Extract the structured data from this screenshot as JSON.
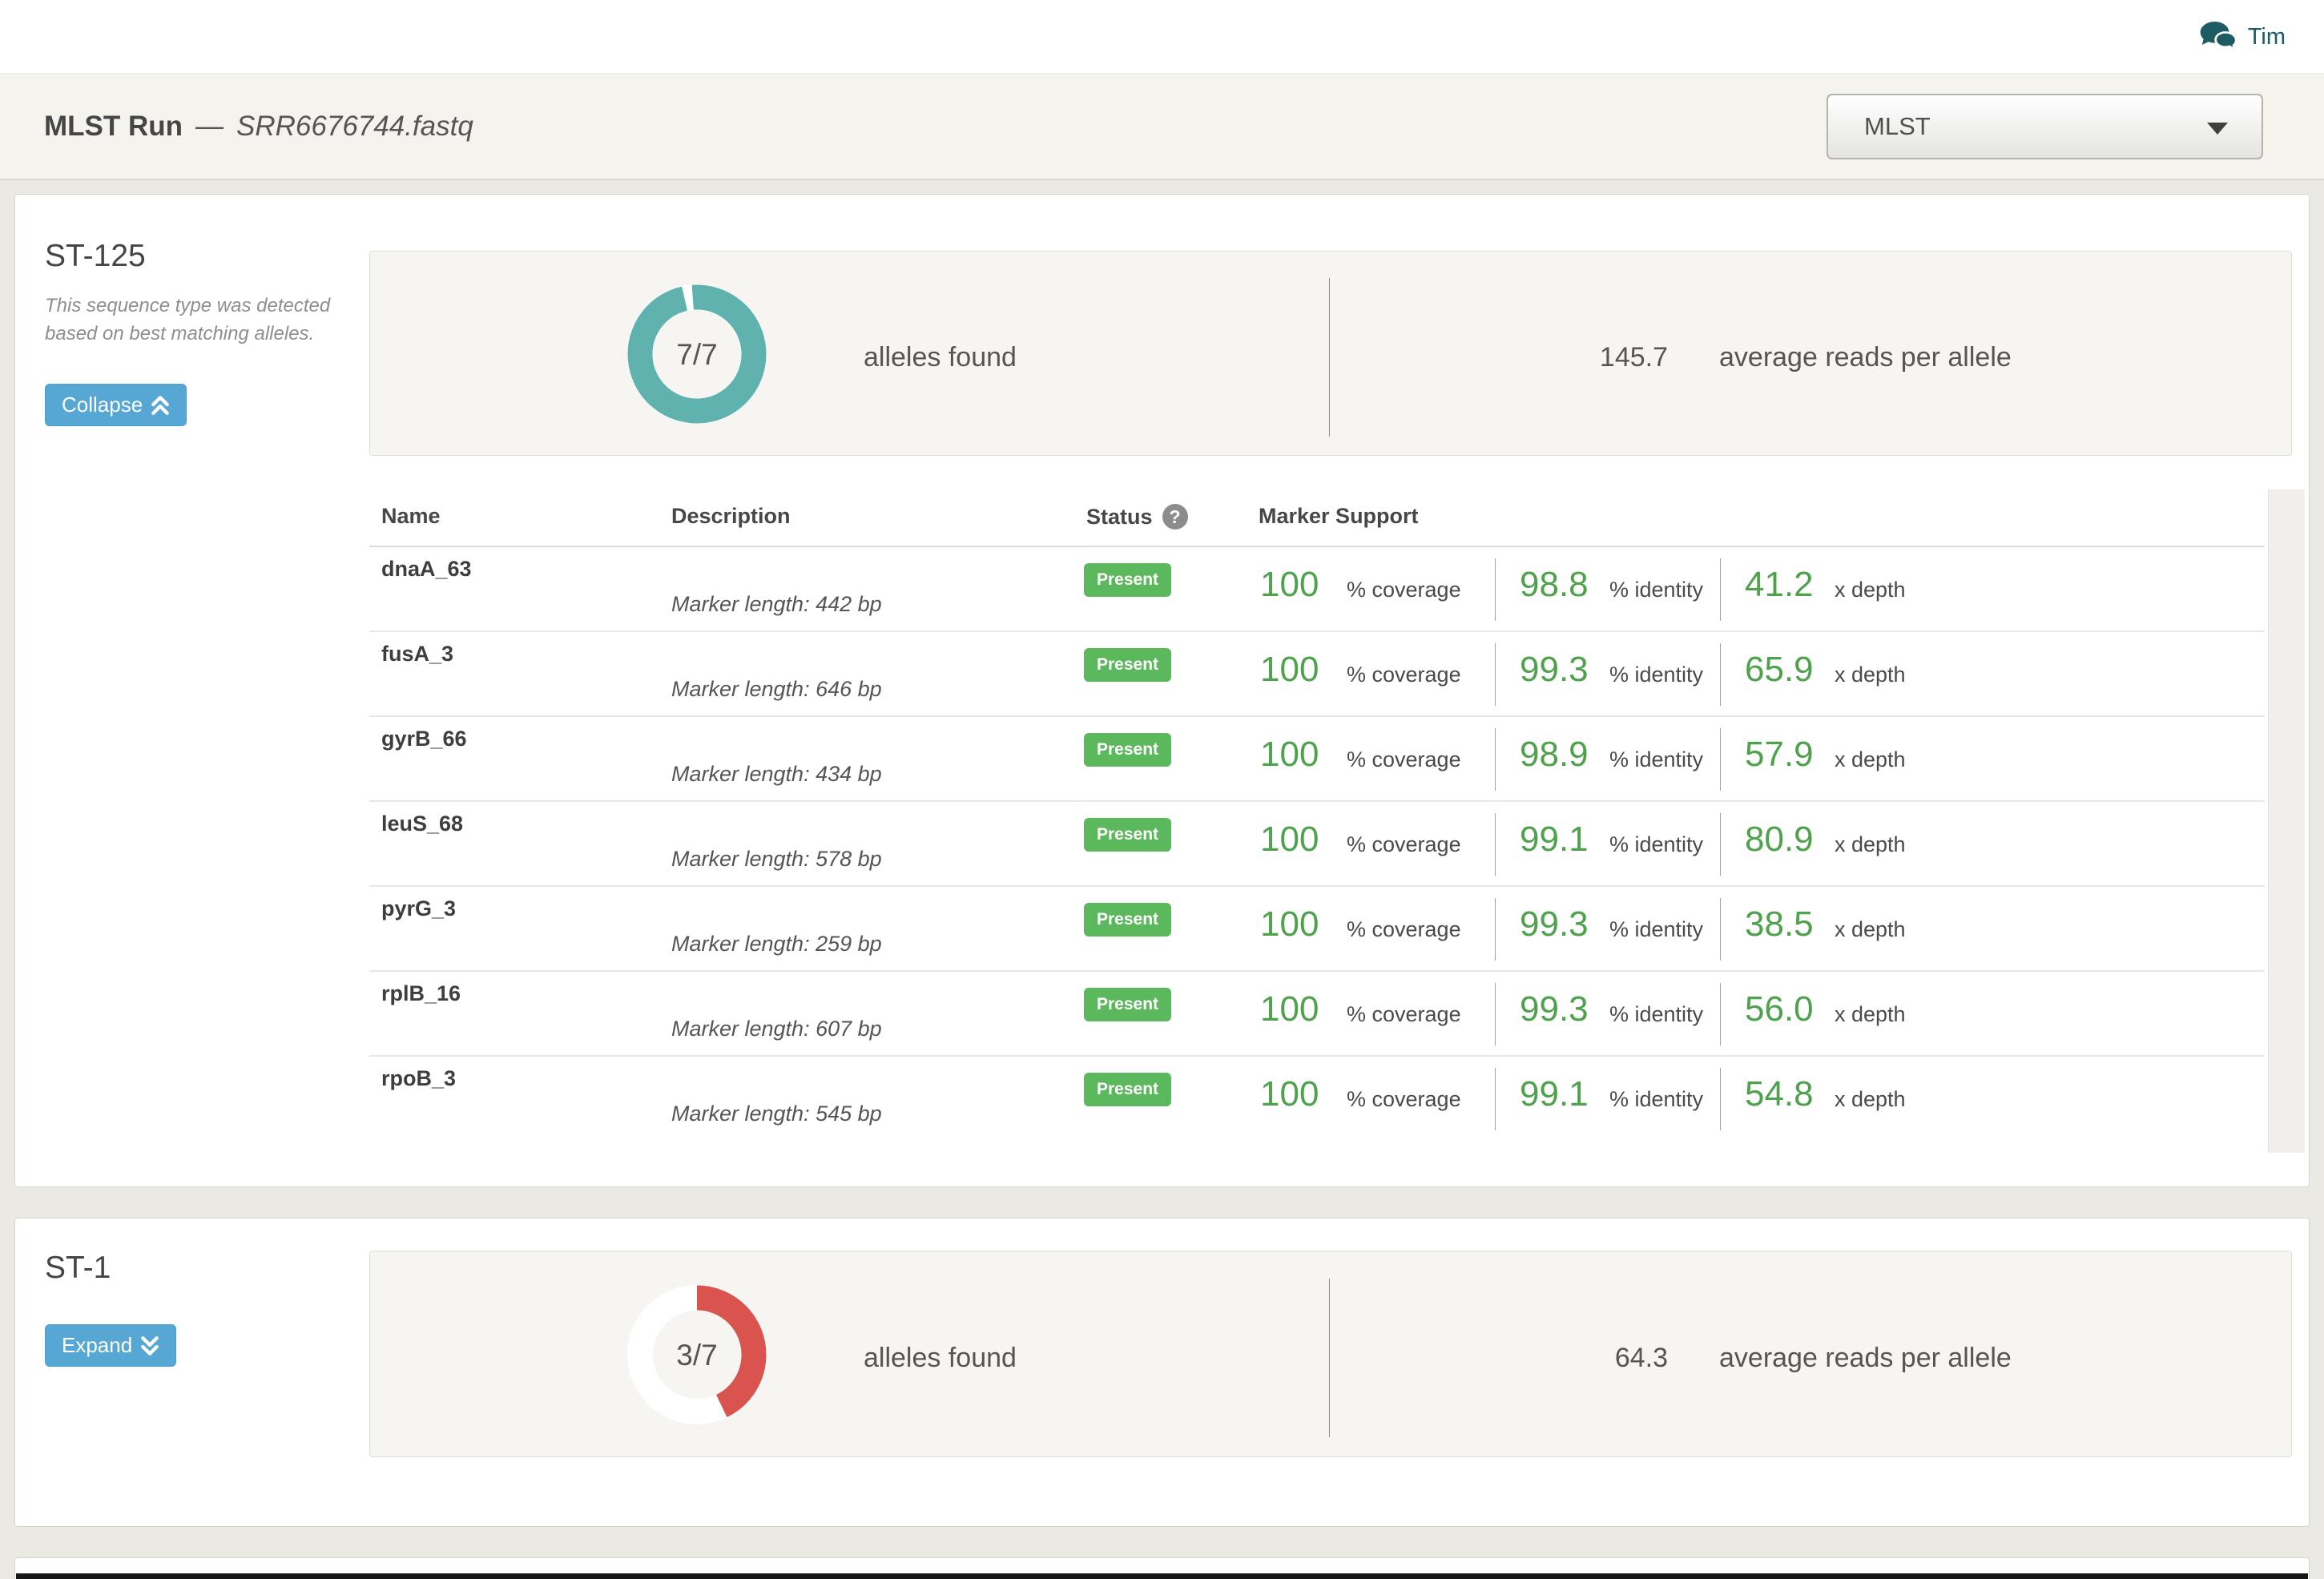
{
  "topbar": {
    "user": "Tim"
  },
  "header": {
    "title": "MLST Run",
    "separator": "—",
    "subtitle": "SRR6676744.fastq",
    "analysis_selector": "MLST"
  },
  "colors": {
    "donut_teal": "#5fb2ad",
    "donut_red": "#d9534f",
    "badge_green": "#5cb85c",
    "metric_green": "#4fa24c",
    "button_blue": "#57a7d5"
  },
  "sequence_types": [
    {
      "id": "ST-125",
      "description": "This sequence type was detected based on best matching alleles.",
      "toggle_label": "Collapse",
      "summary": {
        "found": 7,
        "total": 7,
        "alleles_display": "7/7",
        "alleles_label": "alleles found",
        "avg_reads": "145.7",
        "avg_reads_label": "average reads per allele",
        "ring_color": "#5fb2ad"
      },
      "table": {
        "headers": {
          "name": "Name",
          "description": "Description",
          "status": "Status",
          "status_help": "?",
          "marker_support": "Marker Support"
        },
        "units": {
          "coverage": "% coverage",
          "identity": "% identity",
          "depth": "x depth"
        },
        "rows": [
          {
            "name": "dnaA_63",
            "description": "Marker length: 442 bp",
            "status": "Present",
            "coverage": "100",
            "identity": "98.8",
            "depth": "41.2"
          },
          {
            "name": "fusA_3",
            "description": "Marker length: 646 bp",
            "status": "Present",
            "coverage": "100",
            "identity": "99.3",
            "depth": "65.9"
          },
          {
            "name": "gyrB_66",
            "description": "Marker length: 434 bp",
            "status": "Present",
            "coverage": "100",
            "identity": "98.9",
            "depth": "57.9"
          },
          {
            "name": "leuS_68",
            "description": "Marker length: 578 bp",
            "status": "Present",
            "coverage": "100",
            "identity": "99.1",
            "depth": "80.9"
          },
          {
            "name": "pyrG_3",
            "description": "Marker length: 259 bp",
            "status": "Present",
            "coverage": "100",
            "identity": "99.3",
            "depth": "38.5"
          },
          {
            "name": "rplB_16",
            "description": "Marker length: 607 bp",
            "status": "Present",
            "coverage": "100",
            "identity": "99.3",
            "depth": "56.0"
          },
          {
            "name": "rpoB_3",
            "description": "Marker length: 545 bp",
            "status": "Present",
            "coverage": "100",
            "identity": "99.1",
            "depth": "54.8"
          }
        ]
      }
    },
    {
      "id": "ST-1",
      "toggle_label": "Expand",
      "summary": {
        "found": 3,
        "total": 7,
        "alleles_display": "3/7",
        "alleles_label": "alleles found",
        "avg_reads": "64.3",
        "avg_reads_label": "average reads per allele",
        "ring_color": "#d9534f"
      }
    }
  ]
}
